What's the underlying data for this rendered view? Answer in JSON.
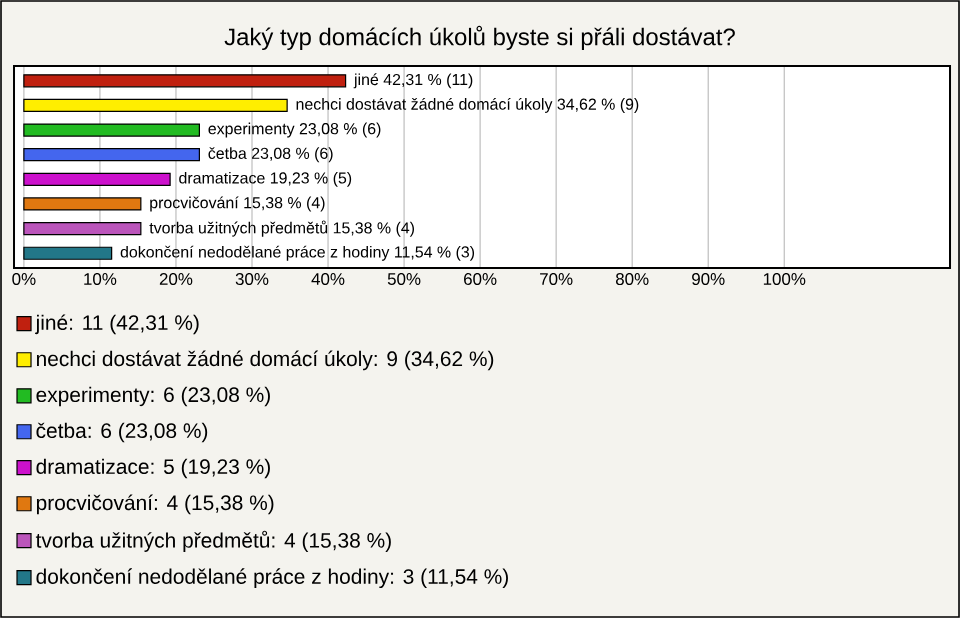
{
  "chart_data": {
    "type": "bar",
    "orientation": "horizontal",
    "title": "Jaký typ domácích úkolů byste si přáli dostávat?",
    "categories": [
      null,
      null,
      null,
      null,
      null,
      null,
      null,
      null
    ],
    "series": [
      {
        "name": "jiné: 11 (42,31 %)",
        "color": "#c0200f",
        "values": [
          42.31,
          null,
          null,
          null,
          null,
          null,
          null,
          null
        ],
        "value_labels": [
          "jiné 42,31 % (11)",
          null,
          null,
          null,
          null,
          null,
          null,
          null
        ]
      },
      {
        "name": "nechci dostávat žádné domácí úkoly: 9 (34,62 %)",
        "color": "#ffee00",
        "values": [
          null,
          34.62,
          null,
          null,
          null,
          null,
          null,
          null
        ],
        "value_labels": [
          null,
          "nechci dostávat žádné domácí úkoly 34,62 % (9)",
          null,
          null,
          null,
          null,
          null,
          null
        ]
      },
      {
        "name": "experimenty: 6 (23,08 %)",
        "color": "#22bb22",
        "values": [
          null,
          null,
          23.08,
          null,
          null,
          null,
          null,
          null
        ],
        "value_labels": [
          null,
          null,
          "experimenty 23,08 % (6)",
          null,
          null,
          null,
          null,
          null
        ]
      },
      {
        "name": "četba: 6 (23,08 %)",
        "color": "#4466ee",
        "values": [
          null,
          null,
          null,
          23.08,
          null,
          null,
          null,
          null
        ],
        "value_labels": [
          null,
          null,
          null,
          "četba 23,08 % (6)",
          null,
          null,
          null,
          null
        ]
      },
      {
        "name": "dramatizace: 5 (19,23 %)",
        "color": "#cc11cc",
        "values": [
          null,
          null,
          null,
          null,
          19.23,
          null,
          null,
          null
        ],
        "value_labels": [
          null,
          null,
          null,
          null,
          "dramatizace 19,23 % (5)",
          null,
          null,
          null
        ]
      },
      {
        "name": "procvičování: 4 (15,38 %)",
        "color": "#e07810",
        "values": [
          null,
          null,
          null,
          null,
          null,
          15.38,
          null,
          null
        ],
        "value_labels": [
          null,
          null,
          null,
          null,
          null,
          "procvičování 15,38 % (4)",
          null,
          null
        ]
      },
      {
        "name": "tvorba užitných předmětů: 4 (15,38 %)",
        "color": "#bb55bb",
        "values": [
          null,
          null,
          null,
          null,
          null,
          null,
          15.38,
          null
        ],
        "value_labels": [
          null,
          null,
          null,
          null,
          null,
          null,
          "tvorba užitných předmětů 15,38 % (4)",
          null
        ]
      },
      {
        "name": "dokončení nedodělané práce z hodiny: 3 (11,54 %)",
        "color": "#227788",
        "values": [
          null,
          null,
          null,
          null,
          null,
          null,
          null,
          11.54
        ],
        "value_labels": [
          null,
          null,
          null,
          null,
          null,
          null,
          null,
          "dokončení nedodělané práce z hodiny 11,54 % (3)"
        ]
      }
    ],
    "xlim": [
      -1.3,
      121.8
    ],
    "xticks": [
      {
        "value": 0,
        "label": "0%"
      },
      {
        "value": 10,
        "label": "10%"
      },
      {
        "value": 20,
        "label": "20%"
      },
      {
        "value": 30,
        "label": "30%"
      },
      {
        "value": 40,
        "label": "40%"
      },
      {
        "value": 50,
        "label": "50%"
      },
      {
        "value": 60,
        "label": "60%"
      },
      {
        "value": 70,
        "label": "70%"
      },
      {
        "value": 80,
        "label": "80%"
      },
      {
        "value": 90,
        "label": "90%"
      },
      {
        "value": 100,
        "label": "100%"
      }
    ],
    "grid": "x",
    "tick_labels": "x",
    "legend": "bottom"
  }
}
